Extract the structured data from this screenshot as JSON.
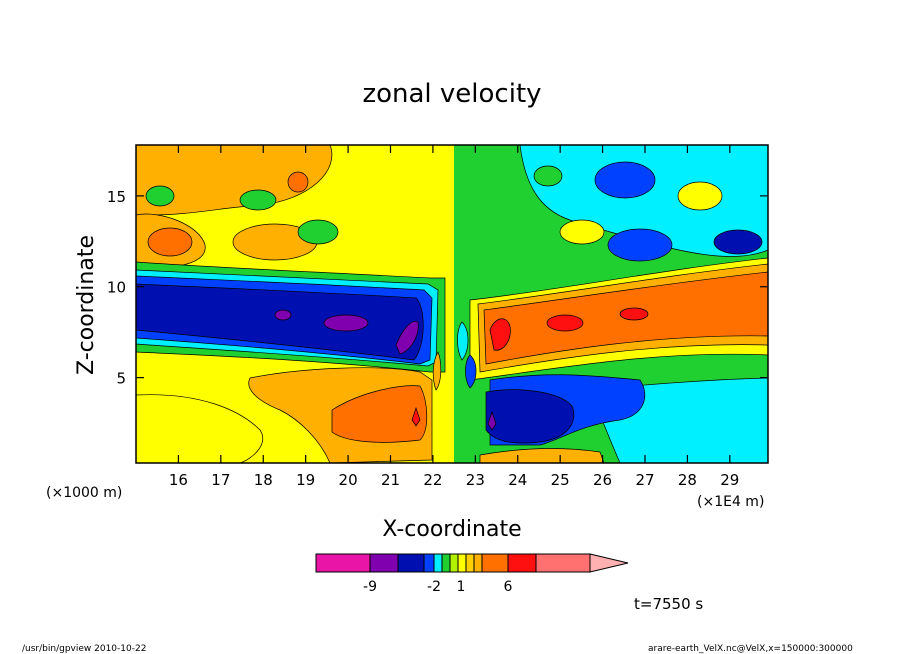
{
  "chart_data": {
    "type": "heatmap",
    "title": "zonal velocity",
    "xlabel": "X-coordinate",
    "ylabel": "Z-coordinate",
    "x_unit_left": "(×1000 m)",
    "x_unit_right": "(×1E4 m)",
    "x_ticks": [
      16,
      17,
      18,
      19,
      20,
      21,
      22,
      23,
      24,
      25,
      26,
      27,
      28,
      29
    ],
    "y_ticks": [
      5,
      10,
      15
    ],
    "xlim": [
      15.0,
      29.9
    ],
    "ylim": [
      0.3,
      17.8
    ],
    "colorbar_labels": [
      "-9",
      "-2",
      "1",
      "6"
    ],
    "timestamp": "t=7550 s",
    "footer_left": "/usr/bin/gpview   2010-10-22",
    "footer_right": "arare-earth_VelX.nc@VelX,x=150000:300000",
    "colors": {
      "lt_-10": "#e815a6",
      "lt_-9": "#8000b0",
      "lt_-5": "#0010b0",
      "lt_-2": "#0040ff",
      "lt_-1": "#00f0ff",
      "lt_0": "#20d030",
      "lt_1": "#b0f000",
      "lt_2": "#ffff00",
      "lt_4": "#ffb000",
      "lt_6": "#ff7000",
      "lt_9": "#ff1010",
      "gt_9": "#ff7070",
      "max": "#ffb0b0"
    }
  }
}
